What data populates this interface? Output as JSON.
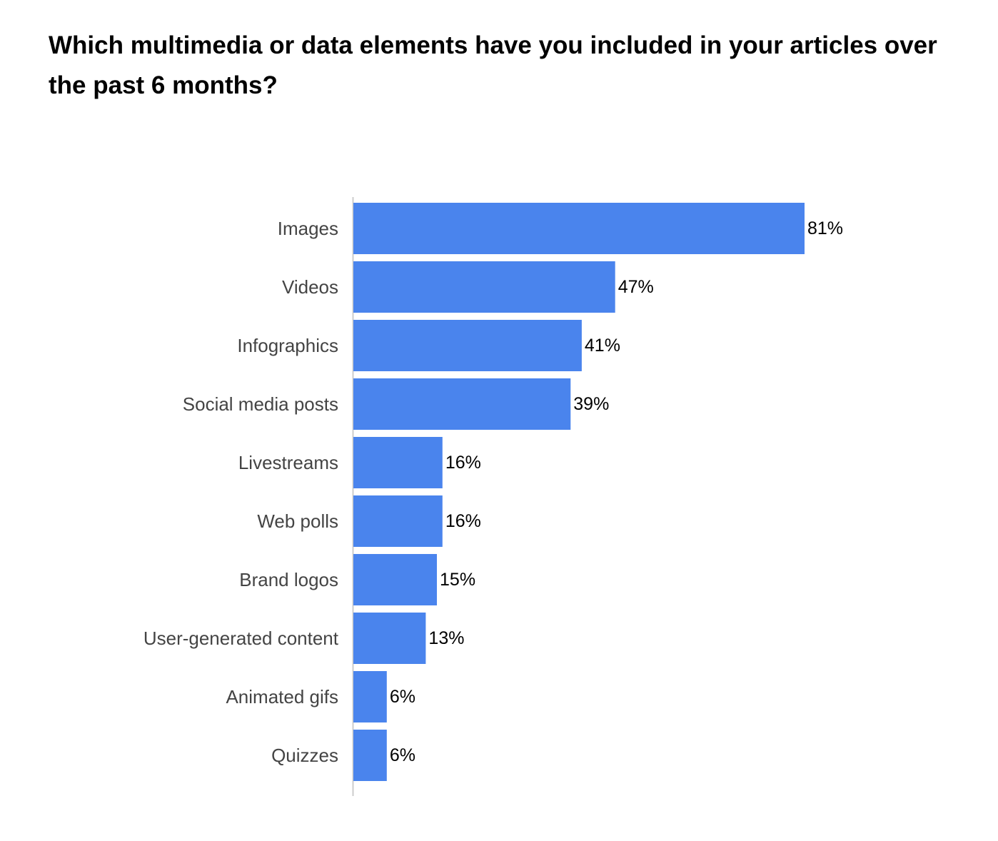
{
  "chart_data": {
    "type": "bar",
    "orientation": "horizontal",
    "title": "Which multimedia or data elements have you included in your articles over the past 6 months?",
    "categories": [
      "Images",
      "Videos",
      "Infographics",
      "Social media posts",
      "Livestreams",
      "Web polls",
      "Brand logos",
      "User-generated content",
      "Animated gifs",
      "Quizzes"
    ],
    "values": [
      81,
      47,
      41,
      39,
      16,
      16,
      15,
      13,
      6,
      6
    ],
    "value_labels": [
      "81%",
      "47%",
      "41%",
      "39%",
      "16%",
      "16%",
      "15%",
      "13%",
      "6%",
      "6%"
    ],
    "unit": "%",
    "xlim": [
      0,
      100
    ],
    "grid": false,
    "legend": "none",
    "bar_color": "#4a84ed"
  }
}
